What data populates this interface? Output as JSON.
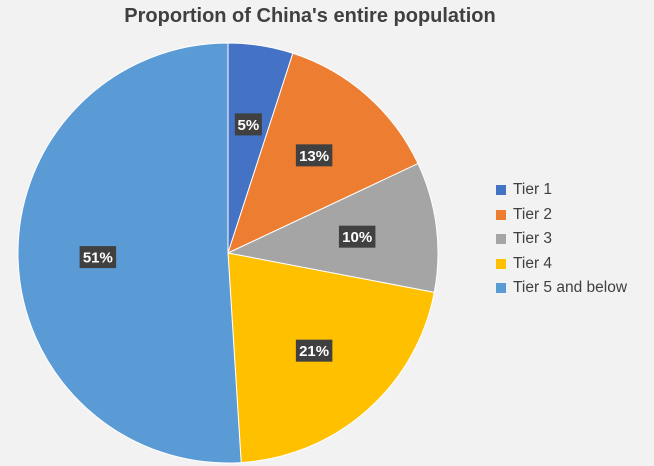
{
  "chart_data": {
    "type": "pie",
    "title": "Proportion of China's entire population",
    "categories": [
      "Tier 1",
      "Tier 2",
      "Tier 3",
      "Tier 4",
      "Tier 5 and below"
    ],
    "values": [
      5,
      13,
      10,
      21,
      51
    ],
    "labels": [
      "5%",
      "13%",
      "10%",
      "21%",
      "51%"
    ],
    "colors": [
      "#4472C4",
      "#ED7D31",
      "#A5A5A5",
      "#FFC000",
      "#5B9BD5"
    ],
    "legend_position": "right",
    "label_background": "#404040",
    "label_color": "#ffffff"
  }
}
